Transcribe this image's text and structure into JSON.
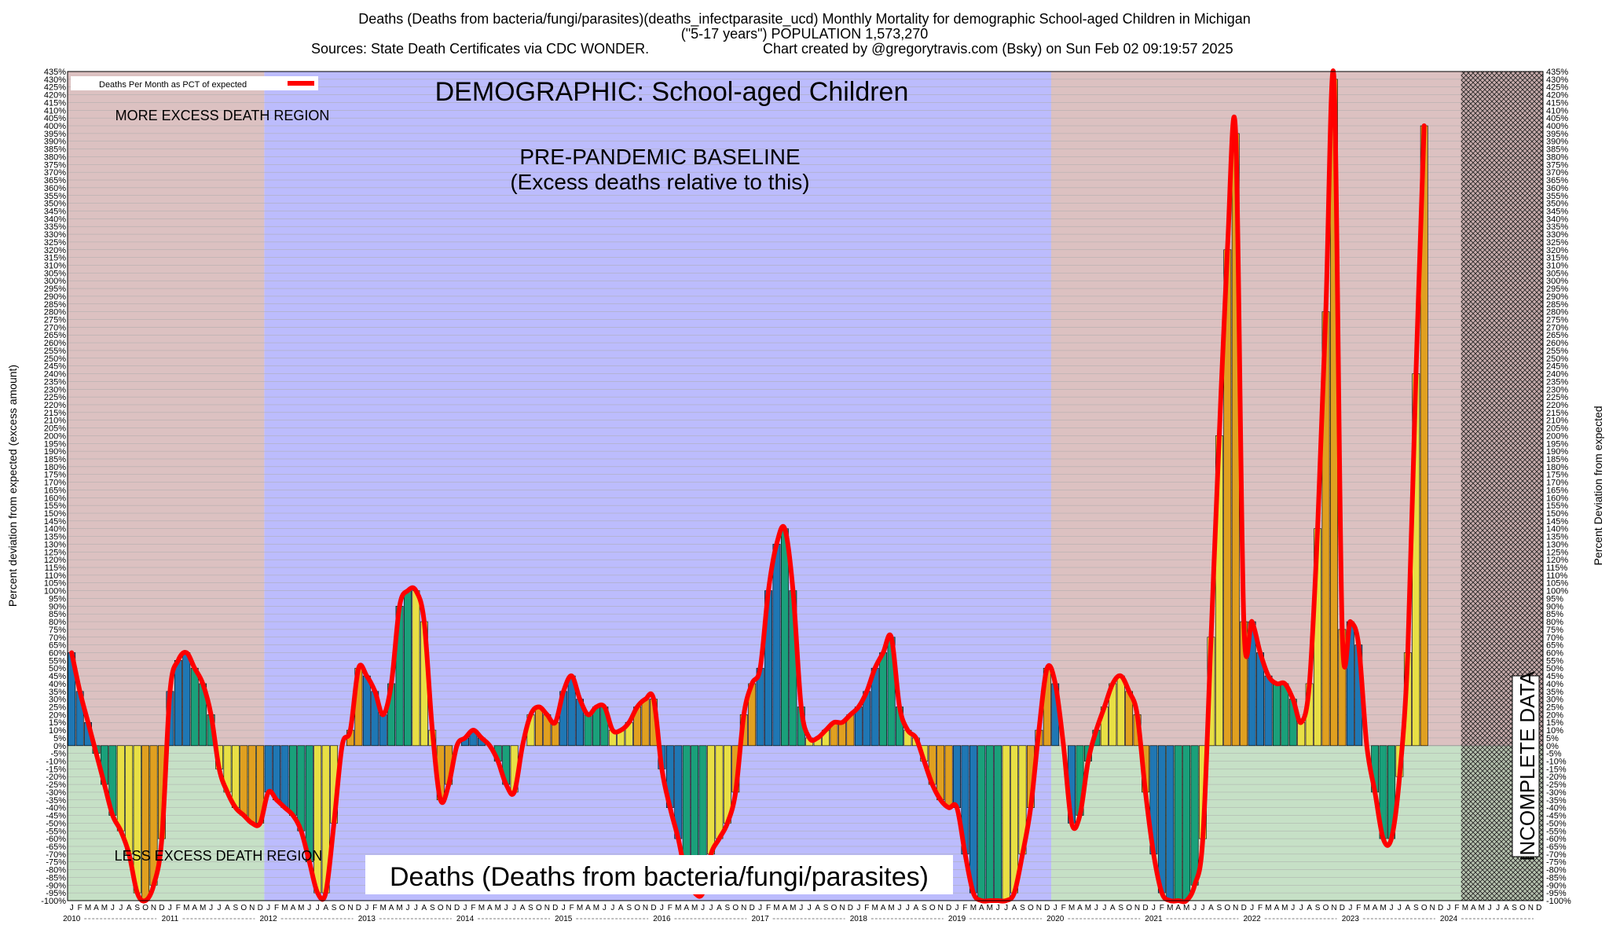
{
  "header": {
    "title_line1": "Deaths (Deaths from bacteria/fungi/parasites)(deaths_infectparasite_ucd) Monthly Mortality for demographic School-aged Children in Michigan",
    "title_line2": "(\"5-17 years\") POPULATION 1,573,270",
    "sources": "Sources: State Death Certificates via CDC WONDER.",
    "credit": "Chart created by @gregorytravis.com (Bsky) on Sun Feb 02 09:19:57 2025"
  },
  "annotations": {
    "demographic": "DEMOGRAPHIC: School-aged Children",
    "more_excess": "MORE EXCESS DEATH REGION",
    "less_excess": "LESS EXCESS DEATH REGION",
    "baseline_line1": "PRE-PANDEMIC BASELINE",
    "baseline_line2": "(Excess deaths relative to this)",
    "cause_label": "Deaths (Deaths from bacteria/fungi/parasites)",
    "incomplete": "INCOMPLETE DATA"
  },
  "legend": {
    "label": "Deaths Per Month as PCT of expected",
    "line_color": "#ff0000"
  },
  "colors": {
    "region_more_excess": "#dcc1c1",
    "region_less_excess": "#c6e0c6",
    "region_baseline": "#bcbcfd",
    "line": "#ff0000",
    "bar_palette": [
      "#1f77b4",
      "#1aa07a",
      "#e8df45",
      "#e0a020"
    ]
  },
  "chart_data": {
    "type": "bar",
    "title": "Deaths (Deaths from bacteria/fungi/parasites)(deaths_infectparasite_ucd) Monthly Mortality for demographic School-aged Children in Michigan",
    "ylabel_left": "Percent deviation from expected (excess amount)",
    "ylabel_right": "Percent Deviation from expected",
    "ylim": [
      -100,
      435
    ],
    "ytick_step": 5,
    "y_unit": "%",
    "grid": true,
    "legend_position": "top-left",
    "baseline_period": [
      "2012-01",
      "2019-12"
    ],
    "incomplete_from": "2024-03",
    "x_start": "2010-01",
    "month_letters": [
      "J",
      "F",
      "M",
      "A",
      "M",
      "J",
      "J",
      "A",
      "S",
      "O",
      "N",
      "D"
    ],
    "years": [
      "2010",
      "2011",
      "2012",
      "2013",
      "2014",
      "2015",
      "2016",
      "2017",
      "2018",
      "2019",
      "2020",
      "2021",
      "2022",
      "2023",
      "2024"
    ],
    "series": [
      {
        "values": [
          60,
          35,
          15,
          -5,
          -25,
          -45,
          -55,
          -70,
          -95,
          -100,
          -90,
          -60,
          35,
          55,
          60,
          50,
          40,
          20,
          -15,
          -30,
          -40,
          -45,
          -50,
          -50,
          -30,
          -35,
          -40,
          -45,
          -55,
          -75,
          -95,
          -95,
          -50,
          0,
          10,
          50,
          45,
          35,
          20,
          40,
          90,
          100,
          100,
          80,
          10,
          -35,
          -25,
          0,
          5,
          10,
          5,
          0,
          -10,
          -25,
          -30,
          0,
          20,
          25,
          20,
          15,
          35,
          45,
          30,
          20,
          25,
          25,
          10,
          10,
          15,
          25,
          30,
          30,
          -15,
          -40,
          -60,
          -85,
          -95,
          -95,
          -70,
          -60,
          -50,
          -30,
          20,
          40,
          50,
          100,
          130,
          140,
          100,
          25,
          5,
          5,
          10,
          15,
          15,
          20,
          25,
          35,
          50,
          60,
          70,
          25,
          10,
          5,
          -10,
          -25,
          -35,
          -40,
          -40,
          -70,
          -95,
          -100,
          -100,
          -100,
          -100,
          -95,
          -70,
          -40,
          10,
          50,
          40,
          0,
          -50,
          -45,
          -10,
          10,
          25,
          40,
          45,
          35,
          20,
          -30,
          -70,
          -95,
          -100,
          -100,
          -100,
          -90,
          -60,
          70,
          200,
          320,
          395,
          80,
          80,
          60,
          45,
          40,
          40,
          30,
          15,
          40,
          140,
          280,
          430,
          75,
          80,
          65,
          0,
          -30,
          -60,
          -60,
          -20,
          60,
          240,
          400
        ]
      }
    ]
  }
}
